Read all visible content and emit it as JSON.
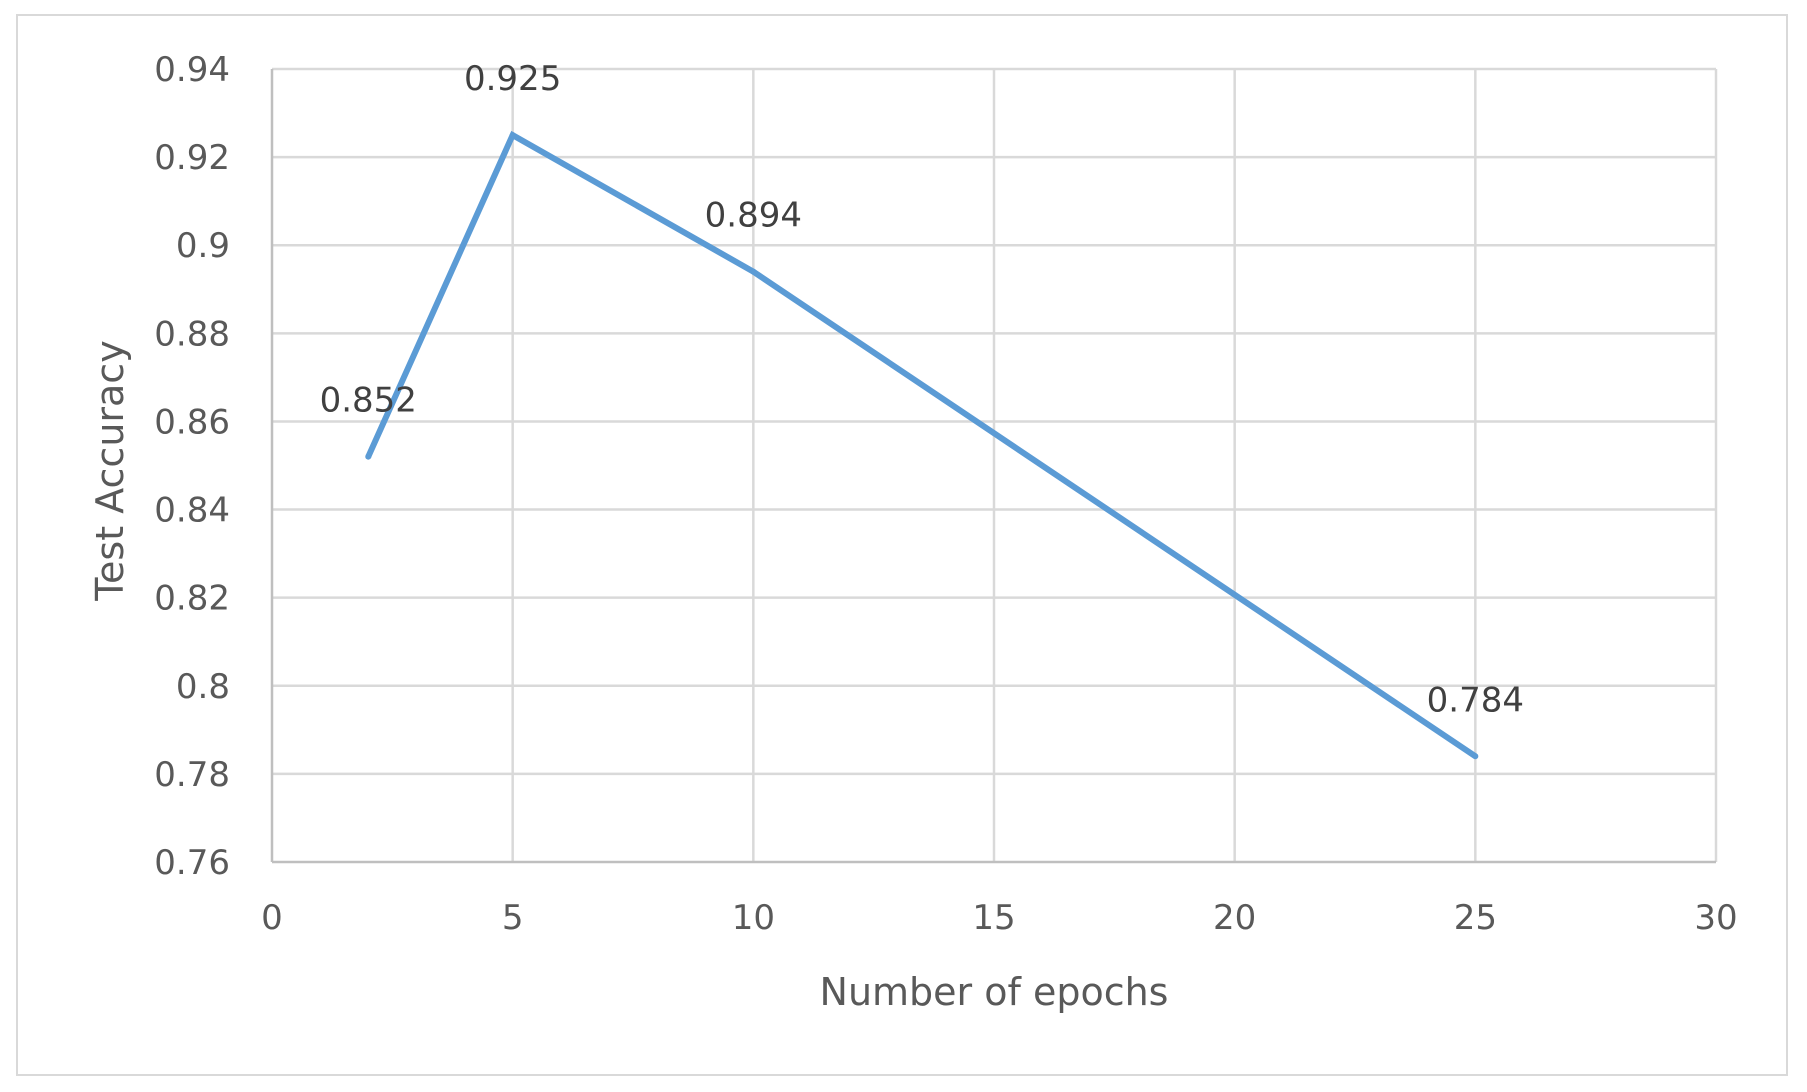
{
  "chart_data": {
    "type": "line",
    "title": "",
    "xlabel": "Number of epochs",
    "ylabel": "Test Accuracy",
    "xlim": [
      0,
      30
    ],
    "ylim": [
      0.76,
      0.94
    ],
    "x_ticks": [
      0,
      5,
      10,
      15,
      20,
      25,
      30
    ],
    "x_tick_labels": [
      "0",
      "5",
      "10",
      "15",
      "20",
      "25",
      "30"
    ],
    "y_ticks": [
      0.76,
      0.78,
      0.8,
      0.82,
      0.84,
      0.86,
      0.88,
      0.9,
      0.92,
      0.94
    ],
    "y_tick_labels": [
      "0.76",
      "0.78",
      "0.8",
      "0.82",
      "0.84",
      "0.86",
      "0.88",
      "0.9",
      "0.92",
      "0.94"
    ],
    "grid": true,
    "legend": "none",
    "series": [
      {
        "color": "#5b9bd5",
        "x": [
          2,
          5,
          10,
          25
        ],
        "y": [
          0.852,
          0.925,
          0.894,
          0.784
        ],
        "labels": [
          "0.852",
          "0.925",
          "0.894",
          "0.784"
        ]
      }
    ]
  }
}
